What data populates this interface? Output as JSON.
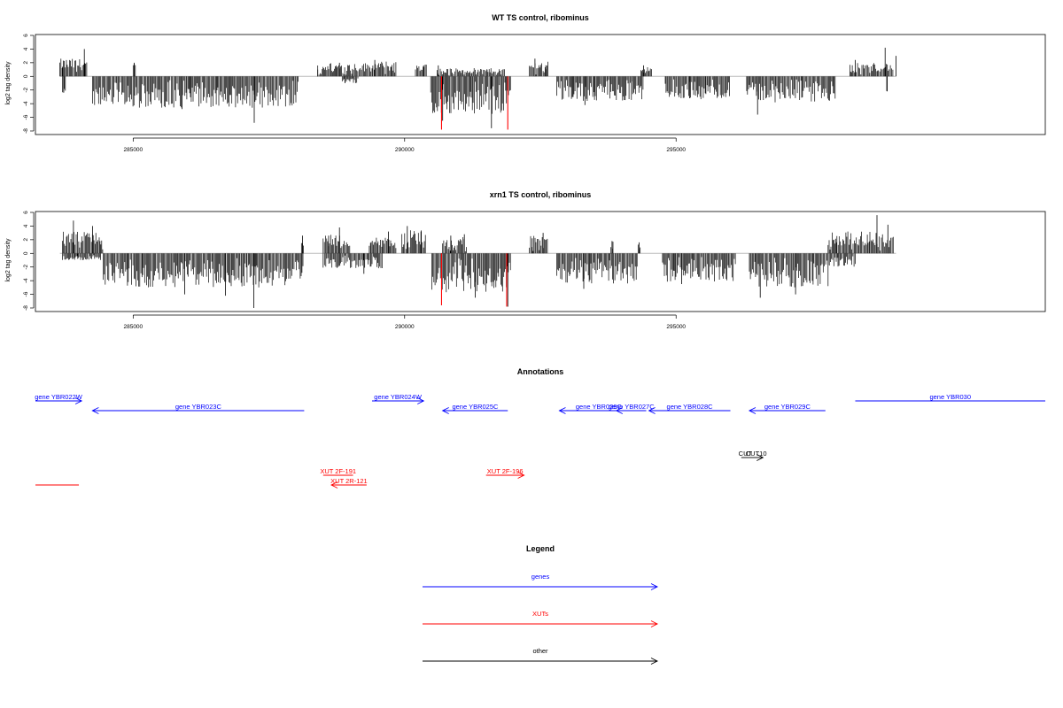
{
  "chart_data": [
    {
      "type": "bar",
      "title": "WT TS control, ribominus",
      "ylabel": "log2 tag density",
      "xlabel": "",
      "xlim": [
        283200,
        301800
      ],
      "ylim": [
        -8,
        6
      ],
      "x_ticks": [
        285000,
        290000,
        295000
      ],
      "y_ticks": [
        6,
        4,
        2,
        0,
        -2,
        -4,
        -6,
        -8
      ],
      "grid": false,
      "baseline_color": "#bbbbbb",
      "bar_color": "#000000",
      "highlight_color": "#ff0000",
      "segments": [
        {
          "from": 283650,
          "to": 284150,
          "sign": 1,
          "max": 2.6,
          "peaks": [
            [
              283700,
              1.4
            ],
            [
              284100,
              4.0
            ]
          ]
        },
        {
          "from": 283700,
          "to": 283760,
          "sign": -1,
          "max": 2.4,
          "peaks": [
            [
              283720,
              2.4
            ]
          ]
        },
        {
          "from": 284250,
          "to": 288050,
          "sign": -1,
          "max": 4.6,
          "peaks": [
            [
              287230,
              6.8
            ],
            [
              285900,
              4.8
            ]
          ]
        },
        {
          "from": 285000,
          "to": 285050,
          "sign": 1,
          "max": 2.0,
          "peaks": [
            [
              285020,
              2.0
            ]
          ]
        },
        {
          "from": 288400,
          "to": 289400,
          "sign": 1,
          "max": 2.0,
          "peaks": [
            [
              288400,
              1.0
            ],
            [
              288800,
              2.0
            ]
          ]
        },
        {
          "from": 288850,
          "to": 289150,
          "sign": -1,
          "max": 1.0,
          "peaks": [
            [
              288900,
              1.0
            ]
          ]
        },
        {
          "from": 289400,
          "to": 289850,
          "sign": 1,
          "max": 2.2,
          "peaks": [
            [
              289450,
              2.4
            ],
            [
              289750,
              1.4
            ]
          ]
        },
        {
          "from": 290200,
          "to": 290400,
          "sign": 1,
          "max": 2.0,
          "peaks": [
            [
              290350,
              1.6
            ]
          ]
        },
        {
          "from": 290480,
          "to": 291950,
          "sign": -1,
          "max": 5.6,
          "peaks": [
            [
              291600,
              7.6
            ],
            [
              290700,
              6.5
            ]
          ]
        },
        {
          "from": 290600,
          "to": 291850,
          "sign": 1,
          "max": 1.2,
          "peaks": [
            [
              290620,
              1.6
            ],
            [
              291520,
              1.0
            ]
          ]
        },
        {
          "from": 292300,
          "to": 292650,
          "sign": 1,
          "max": 2.2,
          "peaks": [
            [
              292400,
              2.6
            ],
            [
              292600,
              1.6
            ]
          ]
        },
        {
          "from": 292800,
          "to": 294400,
          "sign": -1,
          "max": 3.6,
          "peaks": [
            [
              293320,
              4.2
            ],
            [
              294200,
              2.6
            ]
          ]
        },
        {
          "from": 294350,
          "to": 294550,
          "sign": 1,
          "max": 1.4,
          "peaks": [
            [
              294400,
              1.6
            ]
          ]
        },
        {
          "from": 294800,
          "to": 296000,
          "sign": -1,
          "max": 3.4,
          "peaks": [
            [
              295250,
              3.2
            ]
          ]
        },
        {
          "from": 296300,
          "to": 297950,
          "sign": -1,
          "max": 3.8,
          "peaks": [
            [
              296500,
              5.6
            ]
          ]
        },
        {
          "from": 298200,
          "to": 299000,
          "sign": 1,
          "max": 2.0,
          "peaks": [
            [
              298300,
              2.4
            ],
            [
              298850,
              4.2
            ],
            [
              299050,
              3.0
            ]
          ]
        },
        {
          "from": 298880,
          "to": 298900,
          "sign": -1,
          "max": 2.2,
          "peaks": [
            [
              298890,
              2.2
            ]
          ]
        }
      ],
      "highlights": [
        {
          "x": 290680,
          "y": -7.8
        },
        {
          "x": 291900,
          "y": -7.8
        }
      ]
    },
    {
      "type": "bar",
      "title": "xrn1 TS control, ribominus",
      "ylabel": "log2 tag density",
      "xlabel": "",
      "xlim": [
        283200,
        301800
      ],
      "ylim": [
        -8,
        6
      ],
      "x_ticks": [
        285000,
        290000,
        295000
      ],
      "y_ticks": [
        6,
        4,
        2,
        0,
        -2,
        -4,
        -6,
        -8
      ],
      "grid": false,
      "baseline_color": "#bbbbbb",
      "bar_color": "#000000",
      "highlight_color": "#ff0000",
      "segments": [
        {
          "from": 283700,
          "to": 284450,
          "sign": 1,
          "max": 3.2,
          "peaks": [
            [
              283900,
              4.8
            ],
            [
              284250,
              4.0
            ]
          ]
        },
        {
          "from": 283700,
          "to": 284400,
          "sign": -1,
          "max": 1.0,
          "peaks": [
            [
              283980,
              0.8
            ]
          ]
        },
        {
          "from": 284450,
          "to": 288150,
          "sign": -1,
          "max": 5.0,
          "peaks": [
            [
              287220,
              8.0
            ],
            [
              285950,
              6.0
            ],
            [
              286700,
              6.2
            ]
          ]
        },
        {
          "from": 288100,
          "to": 288150,
          "sign": 1,
          "max": 2.4,
          "peaks": [
            [
              288120,
              2.6
            ]
          ]
        },
        {
          "from": 288500,
          "to": 289000,
          "sign": 1,
          "max": 2.8,
          "peaks": [
            [
              288800,
              3.8
            ],
            [
              288600,
              2.6
            ]
          ]
        },
        {
          "from": 288500,
          "to": 289600,
          "sign": -1,
          "max": 2.2,
          "peaks": [
            [
              289250,
              3.0
            ]
          ]
        },
        {
          "from": 289350,
          "to": 289850,
          "sign": 1,
          "max": 2.4,
          "peaks": [
            [
              289700,
              3.2
            ]
          ]
        },
        {
          "from": 289950,
          "to": 290400,
          "sign": 1,
          "max": 3.4,
          "peaks": [
            [
              290050,
              4.0
            ],
            [
              290300,
              3.2
            ]
          ]
        },
        {
          "from": 290500,
          "to": 291950,
          "sign": -1,
          "max": 5.8,
          "peaks": [
            [
              290680,
              7.6
            ],
            [
              291900,
              7.8
            ],
            [
              291300,
              6.5
            ]
          ]
        },
        {
          "from": 290700,
          "to": 291150,
          "sign": 1,
          "max": 2.4,
          "peaks": [
            [
              290850,
              2.6
            ],
            [
              291100,
              2.8
            ]
          ]
        },
        {
          "from": 292300,
          "to": 292650,
          "sign": 1,
          "max": 2.6,
          "peaks": [
            [
              292350,
              2.2
            ],
            [
              292550,
              3.0
            ]
          ]
        },
        {
          "from": 292800,
          "to": 294300,
          "sign": -1,
          "max": 4.4,
          "peaks": [
            [
              293300,
              5.2
            ]
          ]
        },
        {
          "from": 293800,
          "to": 293850,
          "sign": 1,
          "max": 1.8,
          "peaks": [
            [
              293820,
              1.8
            ]
          ]
        },
        {
          "from": 294300,
          "to": 294350,
          "sign": 1,
          "max": 1.6,
          "peaks": [
            [
              294320,
              1.6
            ]
          ]
        },
        {
          "from": 294750,
          "to": 296100,
          "sign": -1,
          "max": 4.2,
          "peaks": [
            [
              295100,
              4.5
            ]
          ]
        },
        {
          "from": 296350,
          "to": 297800,
          "sign": -1,
          "max": 5.0,
          "peaks": [
            [
              296550,
              6.5
            ],
            [
              297200,
              6.0
            ]
          ]
        },
        {
          "from": 297800,
          "to": 299000,
          "sign": 1,
          "max": 3.2,
          "peaks": [
            [
              298700,
              5.6
            ],
            [
              298900,
              4.2
            ],
            [
              297950,
              1.6
            ]
          ]
        },
        {
          "from": 297800,
          "to": 298300,
          "sign": -1,
          "max": 2.0,
          "peaks": [
            [
              298000,
              1.8
            ]
          ]
        }
      ],
      "highlights": [
        {
          "x": 290680,
          "y": -7.6
        },
        {
          "x": 291880,
          "y": -7.8
        }
      ]
    }
  ],
  "annotations": {
    "title": "Annotations",
    "xlim": [
      283200,
      301800
    ],
    "features": [
      {
        "label": "gene YBR022W",
        "start": 283200,
        "end": 284050,
        "strand": "+",
        "category": "genes",
        "row": 0
      },
      {
        "label": "gene YBR023C",
        "start": 284250,
        "end": 288150,
        "strand": "-",
        "category": "genes",
        "row": 1
      },
      {
        "label": "gene YBR024W",
        "start": 289400,
        "end": 290350,
        "strand": "+",
        "category": "genes",
        "row": 0
      },
      {
        "label": "gene YBR025C",
        "start": 290700,
        "end": 291900,
        "strand": "-",
        "category": "genes",
        "row": 1
      },
      {
        "label": "gene YBR026C",
        "start": 292850,
        "end": 294300,
        "strand": "-",
        "category": "genes",
        "row": 1
      },
      {
        "label": "gene YBR027C",
        "start": 293900,
        "end": 294450,
        "strand": "-",
        "category": "genes",
        "row": 1
      },
      {
        "label": "gene YBR028C",
        "start": 294500,
        "end": 296000,
        "strand": "-",
        "category": "genes",
        "row": 1
      },
      {
        "label": "gene YBR029C",
        "start": 296350,
        "end": 297750,
        "strand": "-",
        "category": "genes",
        "row": 1
      },
      {
        "label": "gene YBR030",
        "start": 298300,
        "end": 301800,
        "strand": "none",
        "category": "genes",
        "row": 0
      },
      {
        "label": "CUT",
        "start": 296200,
        "end": 296350,
        "strand": "none",
        "category": "other",
        "row": 2
      },
      {
        "label": "CUT10",
        "start": 296350,
        "end": 296600,
        "strand": "+",
        "category": "other",
        "row": 2
      },
      {
        "label": "XUT 2F-191",
        "start": 288500,
        "end": 289050,
        "strand": "none",
        "category": "XUTs",
        "row": 3
      },
      {
        "label": "XUT 2R-121",
        "start": 288650,
        "end": 289300,
        "strand": "-",
        "category": "XUTs",
        "row": 4
      },
      {
        "label": "XUT 2F-196",
        "start": 291500,
        "end": 292200,
        "strand": "+",
        "category": "XUTs",
        "row": 3
      },
      {
        "label": "",
        "start": 283200,
        "end": 284000,
        "strand": "none",
        "category": "XUTs",
        "row": 4
      }
    ]
  },
  "legend": {
    "title": "Legend",
    "items": [
      {
        "label": "genes",
        "color": "#0000ff"
      },
      {
        "label": "XUTs",
        "color": "#ff0000"
      },
      {
        "label": "other",
        "color": "#000000"
      }
    ]
  },
  "colors": {
    "genes": "#0000ff",
    "XUTs": "#ff0000",
    "other": "#000000"
  }
}
